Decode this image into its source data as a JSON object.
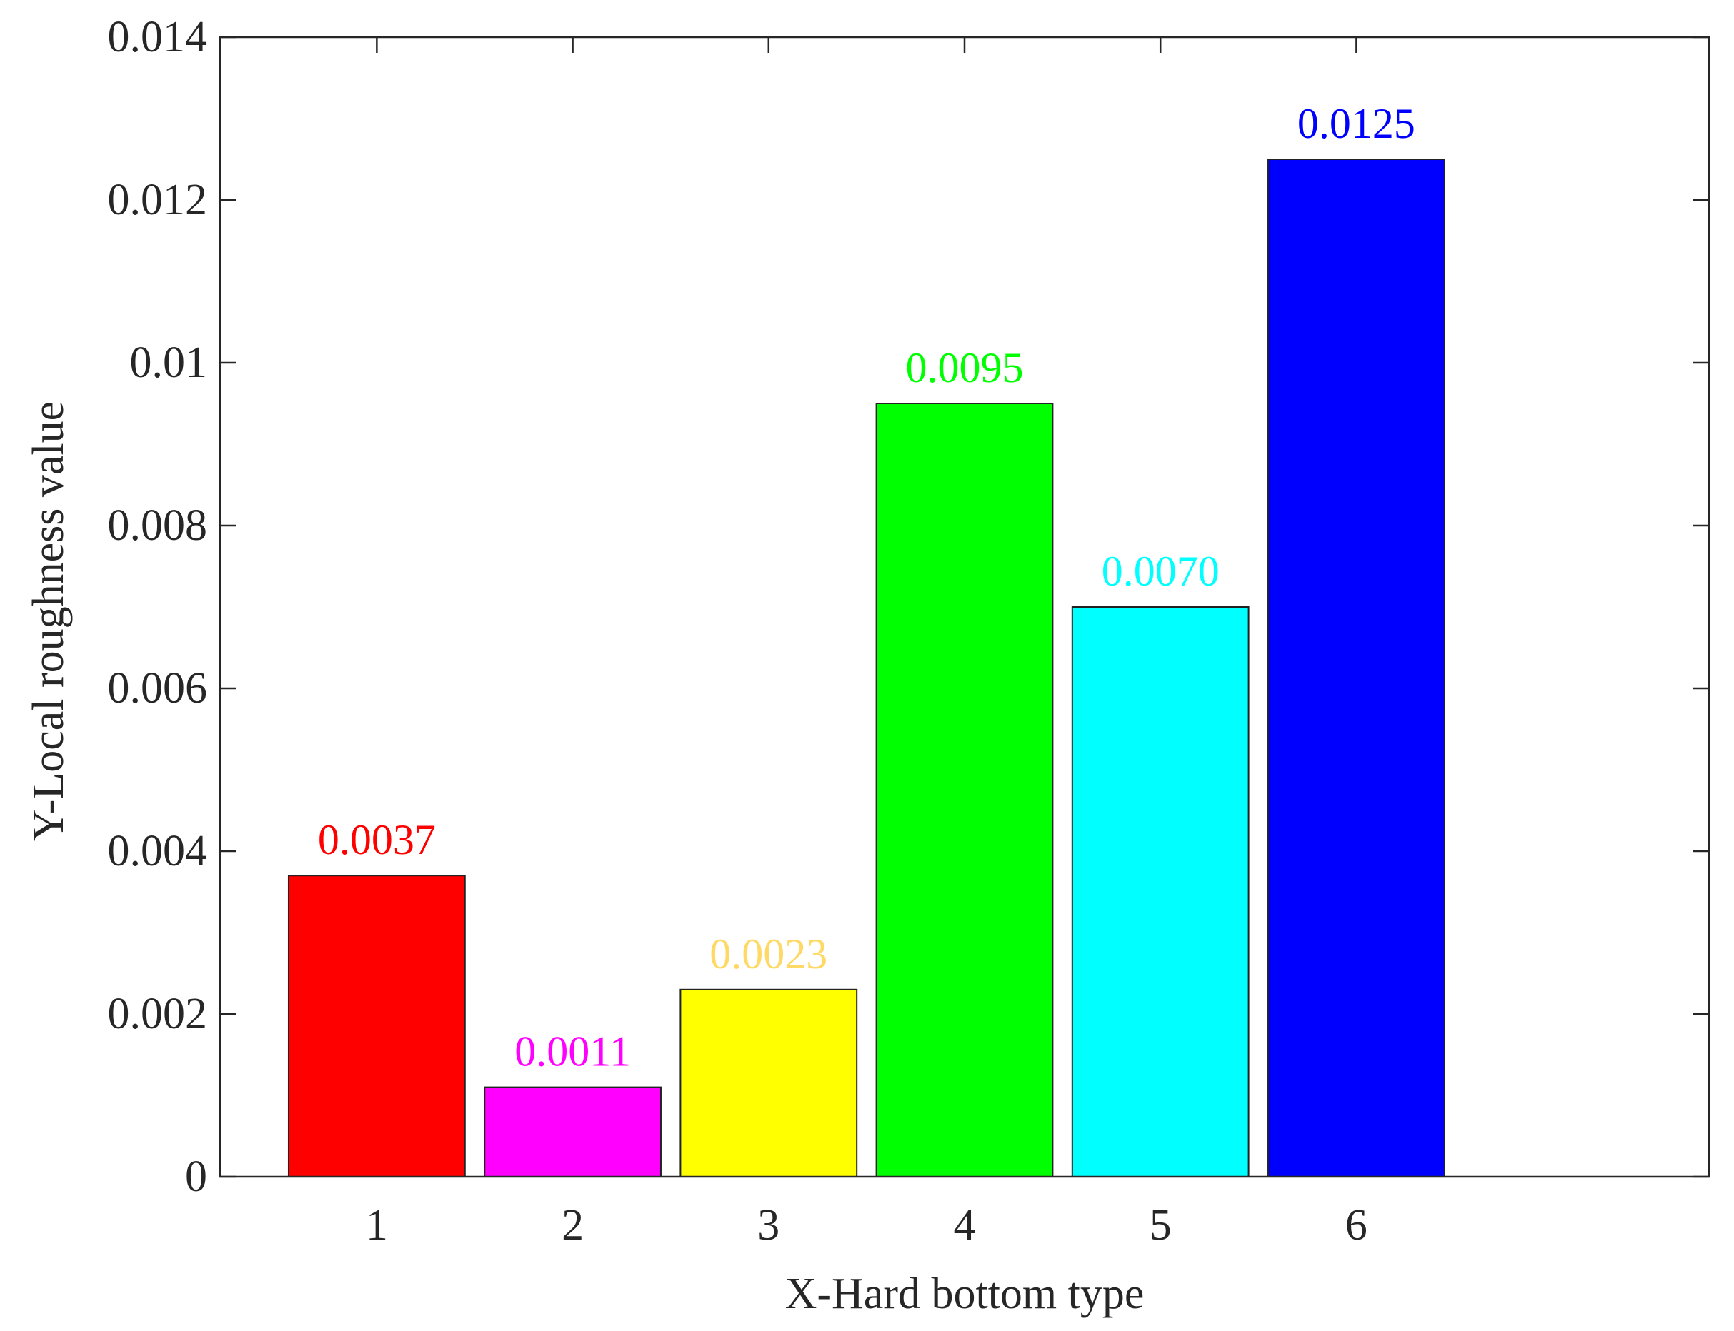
{
  "chart_data": {
    "type": "bar",
    "title": "",
    "xlabel": "X-Hard bottom type",
    "ylabel": "Y-Local roughness value",
    "categories": [
      "1",
      "2",
      "3",
      "4",
      "5",
      "6"
    ],
    "values": [
      0.0037,
      0.0011,
      0.0023,
      0.0095,
      0.007,
      0.0125
    ],
    "data_labels": [
      "0.0037",
      "0.0011",
      "0.0023",
      "0.0095",
      "0.0070",
      "0.0125"
    ],
    "bar_colors": [
      "#ff0000",
      "#ff00ff",
      "#ffff00",
      "#00ff00",
      "#00ffff",
      "#0000ff"
    ],
    "label_colors": [
      "#ff0000",
      "#ff00ff",
      "#ffd966",
      "#00ff00",
      "#00ffff",
      "#0000ff"
    ],
    "xlim": [
      0.2,
      7.8
    ],
    "ylim": [
      0,
      0.014
    ],
    "yticks": [
      0,
      0.002,
      0.004,
      0.006,
      0.008,
      0.01,
      0.012,
      0.014
    ],
    "ytick_labels": [
      "0",
      "0.002",
      "0.004",
      "0.006",
      "0.008",
      "0.01",
      "0.012",
      "0.014"
    ],
    "grid": false,
    "legend": "none"
  }
}
